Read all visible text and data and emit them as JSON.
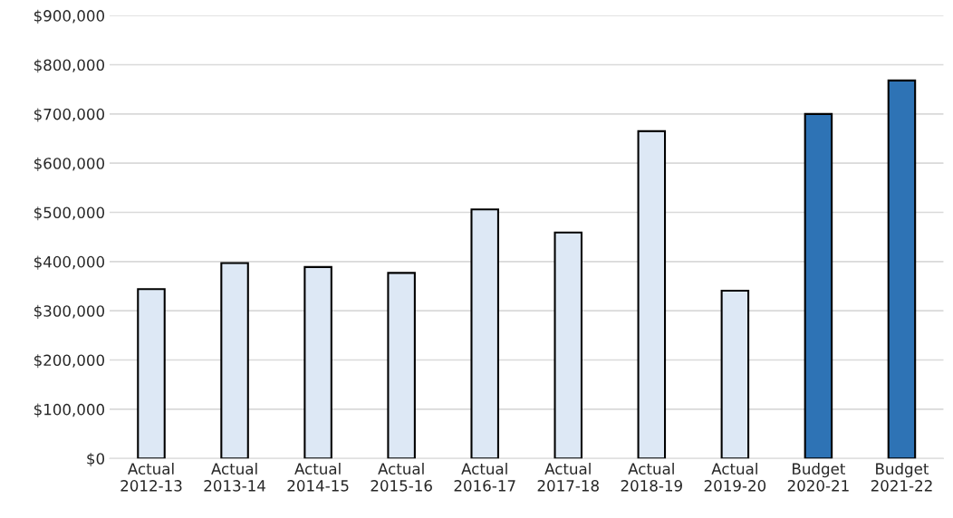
{
  "chart_data": {
    "type": "bar",
    "categories": [
      "Actual\n2012-13",
      "Actual\n2013-14",
      "Actual\n2014-15",
      "Actual\n2015-16",
      "Actual\n2016-17",
      "Actual\n2017-18",
      "Actual\n2018-19",
      "Actual\n2019-20",
      "Budget\n2020-21",
      "Budget\n2021-22"
    ],
    "values": [
      344000,
      397000,
      389000,
      377000,
      506000,
      459000,
      665000,
      341000,
      700000,
      768000
    ],
    "colors": [
      "#dde8f5",
      "#dde8f5",
      "#dde8f5",
      "#dde8f5",
      "#dde8f5",
      "#dde8f5",
      "#dde8f5",
      "#dde8f5",
      "#2e73b5",
      "#2e73b5"
    ],
    "ylim": [
      0,
      900000
    ],
    "yticks": [
      {
        "value": 0,
        "label": "$0"
      },
      {
        "value": 100000,
        "label": "$100,000"
      },
      {
        "value": 200000,
        "label": "$200,000"
      },
      {
        "value": 300000,
        "label": "$300,000"
      },
      {
        "value": 400000,
        "label": "$400,000"
      },
      {
        "value": 500000,
        "label": "$500,000"
      },
      {
        "value": 600000,
        "label": "$600,000"
      },
      {
        "value": 700000,
        "label": "$700,000"
      },
      {
        "value": 800000,
        "label": "$800,000"
      },
      {
        "value": 900000,
        "label": "$900,000"
      }
    ],
    "grid": "y"
  }
}
